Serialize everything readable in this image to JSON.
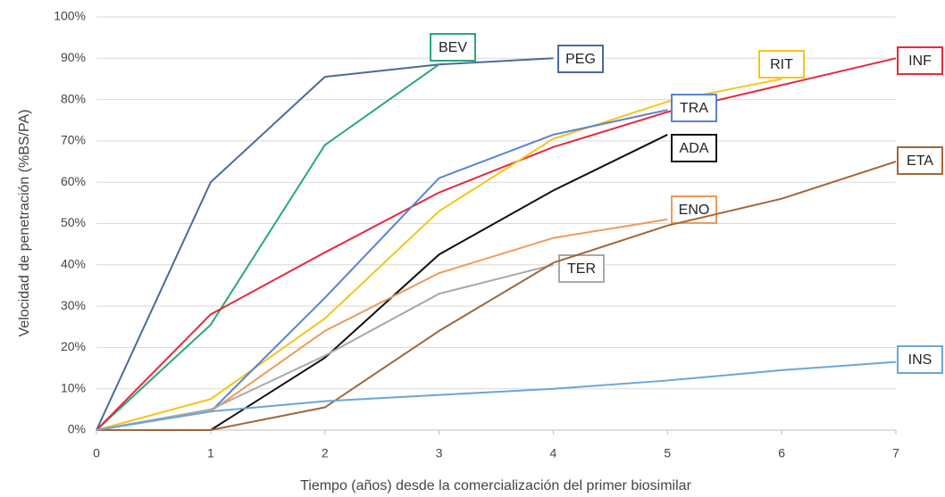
{
  "chart_data": {
    "type": "line",
    "ylabel": "Velocidad de penetración  (%BS/PA)",
    "xlabel": "Tiempo (años) desde la comercialización del primer biosimilar",
    "x": [
      0,
      1,
      2,
      3,
      4,
      5,
      6,
      7
    ],
    "xlim": [
      0,
      7
    ],
    "xticks": [
      0,
      1,
      2,
      3,
      4,
      5,
      6,
      7
    ],
    "ylim": [
      0,
      100
    ],
    "yticks": [
      {
        "value": 0,
        "label": "0%"
      },
      {
        "value": 10,
        "label": "10%"
      },
      {
        "value": 20,
        "label": "20%"
      },
      {
        "value": 30,
        "label": "30%"
      },
      {
        "value": 40,
        "label": "40%"
      },
      {
        "value": 50,
        "label": "50%"
      },
      {
        "value": 60,
        "label": "60%"
      },
      {
        "value": 70,
        "label": "70%"
      },
      {
        "value": 80,
        "label": "80%"
      },
      {
        "value": 90,
        "label": "90%"
      },
      {
        "value": 100,
        "label": "100%"
      }
    ],
    "grid": true,
    "series": [
      {
        "name": "PEG",
        "color": "#4a6b9a",
        "values": [
          0,
          60,
          85.5,
          88.5,
          90,
          null,
          null,
          null
        ]
      },
      {
        "name": "BEV",
        "color": "#2aa876",
        "values": [
          0,
          25.5,
          69,
          88.5,
          null,
          null,
          null,
          null
        ]
      },
      {
        "name": "INF",
        "color": "#e8283c",
        "values": [
          0,
          28,
          43,
          57.5,
          68.5,
          77,
          83.5,
          90
        ]
      },
      {
        "name": "RIT",
        "color": "#f5c518",
        "values": [
          0,
          7.5,
          27,
          53,
          70.5,
          79.5,
          85,
          null
        ]
      },
      {
        "name": "TRA",
        "color": "#5b82d0",
        "values": [
          0,
          4.5,
          32,
          61,
          71.5,
          77.5,
          null,
          null
        ]
      },
      {
        "name": "ADA",
        "color": "#111111",
        "values": [
          0,
          0,
          17.5,
          42.5,
          58,
          71.5,
          null,
          null
        ]
      },
      {
        "name": "ENO",
        "color": "#ef9a5a",
        "values": [
          0,
          4.5,
          24,
          38,
          46.5,
          51,
          null,
          null
        ]
      },
      {
        "name": "TER",
        "color": "#a8a8a8",
        "values": [
          0,
          5,
          18,
          33,
          40,
          null,
          null,
          null
        ]
      },
      {
        "name": "ETA",
        "color": "#a0663a",
        "values": [
          0,
          0,
          5.5,
          24,
          40.5,
          49.5,
          56,
          65
        ]
      },
      {
        "name": "INS",
        "color": "#6aa6d8",
        "values": [
          0,
          4.5,
          7,
          8.5,
          10,
          12,
          14.5,
          16.5
        ]
      }
    ]
  }
}
